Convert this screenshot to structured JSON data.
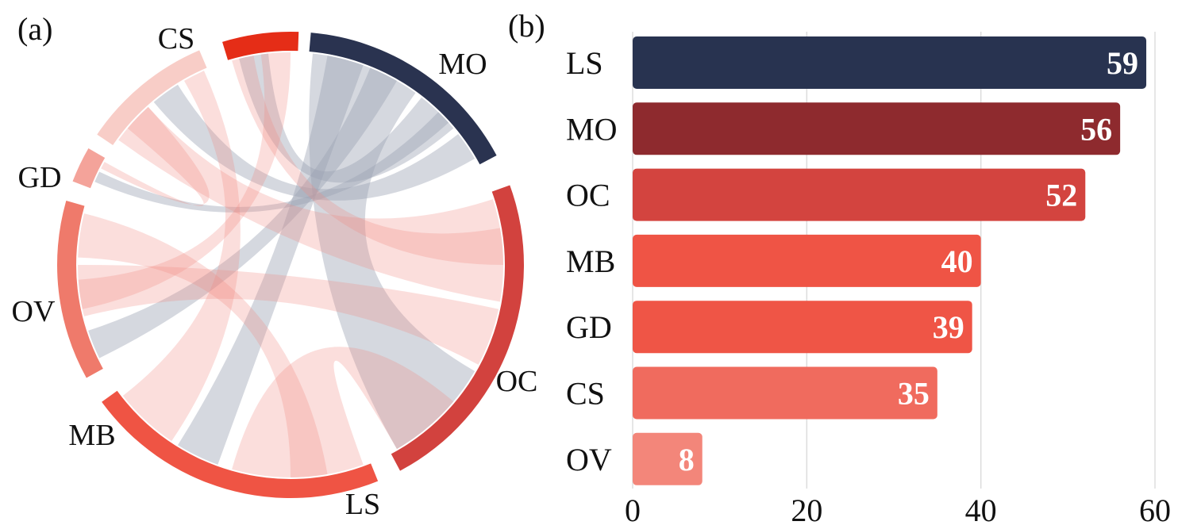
{
  "chart_data": [
    {
      "panel": "(a)",
      "type": "chord",
      "groups": [
        {
          "name": "MO",
          "color": "#2a3350"
        },
        {
          "name": "OC",
          "color": "#d2423e"
        },
        {
          "name": "LS",
          "color": "#ef5444"
        },
        {
          "name": "MB",
          "color": "#ef7a6b"
        },
        {
          "name": "OV",
          "color": "#f4a39a"
        },
        {
          "name": "GD",
          "color": "#f8cdc7"
        },
        {
          "name": "CS",
          "color": "#e52d17"
        }
      ],
      "ribbon_colors": {
        "MO": "#9aa1b3",
        "other": "#f08a80"
      }
    },
    {
      "panel": "(b)",
      "type": "bar",
      "orientation": "horizontal",
      "categories": [
        "LS",
        "MO",
        "OC",
        "MB",
        "GD",
        "CS",
        "OV"
      ],
      "values": [
        59,
        56,
        52,
        40,
        39,
        35,
        8
      ],
      "value_labels": [
        "59",
        "56",
        "52",
        "40",
        "39",
        "35",
        "8"
      ],
      "colors": [
        "#283350",
        "#8e2a2e",
        "#d3443f",
        "#ef5445",
        "#ef5546",
        "#f06b5e",
        "#f3867a"
      ],
      "xlim": [
        0,
        60
      ],
      "xticks": [
        0,
        20,
        40,
        60
      ],
      "xtick_labels": [
        "0",
        "20",
        "40",
        "60"
      ],
      "grid": "vertical",
      "xlabel": "",
      "ylabel": "",
      "title": ""
    }
  ]
}
